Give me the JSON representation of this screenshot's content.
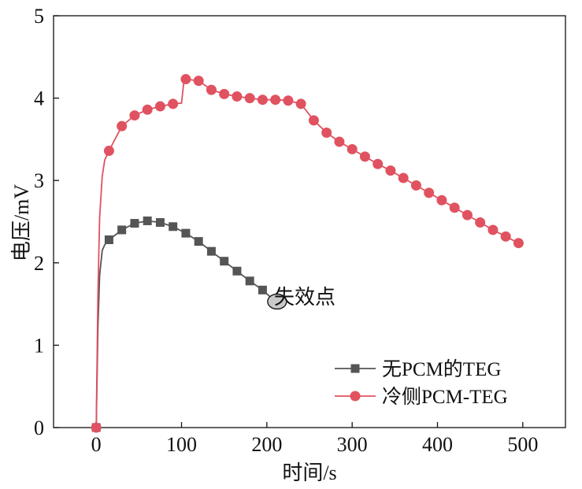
{
  "chart_data": {
    "type": "line",
    "xlabel": "时间/s",
    "ylabel": "电压/mV",
    "xlim": [
      -50,
      550
    ],
    "ylim": [
      0,
      5
    ],
    "xticks": [
      0,
      100,
      200,
      300,
      400,
      500
    ],
    "yticks": [
      0,
      1,
      2,
      3,
      4,
      5
    ],
    "grid": false,
    "legend": "bottom-right",
    "series": [
      {
        "name": "无PCM的TEG",
        "color": "#555555",
        "marker": "square",
        "markers": [
          [
            0,
            0
          ],
          [
            15,
            2.28
          ],
          [
            30,
            2.4
          ],
          [
            45,
            2.48
          ],
          [
            60,
            2.51
          ],
          [
            75,
            2.49
          ],
          [
            90,
            2.44
          ],
          [
            105,
            2.36
          ],
          [
            120,
            2.26
          ],
          [
            135,
            2.14
          ],
          [
            150,
            2.02
          ],
          [
            165,
            1.9
          ],
          [
            180,
            1.78
          ],
          [
            195,
            1.67
          ]
        ],
        "line": [
          [
            0,
            0
          ],
          [
            2,
            1.2
          ],
          [
            4,
            1.85
          ],
          [
            7,
            2.15
          ],
          [
            10,
            2.22
          ],
          [
            15,
            2.28
          ],
          [
            30,
            2.4
          ],
          [
            45,
            2.48
          ],
          [
            60,
            2.51
          ],
          [
            75,
            2.49
          ],
          [
            90,
            2.44
          ],
          [
            105,
            2.36
          ],
          [
            120,
            2.26
          ],
          [
            135,
            2.14
          ],
          [
            150,
            2.02
          ],
          [
            165,
            1.9
          ],
          [
            180,
            1.78
          ],
          [
            195,
            1.67
          ],
          [
            210,
            1.53
          ]
        ]
      },
      {
        "name": "冷侧PCM-TEG",
        "color": "#e05260",
        "marker": "circle",
        "markers": [
          [
            0,
            0
          ],
          [
            15,
            3.36
          ],
          [
            30,
            3.66
          ],
          [
            45,
            3.79
          ],
          [
            60,
            3.86
          ],
          [
            75,
            3.9
          ],
          [
            90,
            3.93
          ],
          [
            105,
            4.23
          ],
          [
            120,
            4.21
          ],
          [
            135,
            4.1
          ],
          [
            150,
            4.05
          ],
          [
            165,
            4.02
          ],
          [
            180,
            4.0
          ],
          [
            195,
            3.98
          ],
          [
            210,
            3.98
          ],
          [
            225,
            3.97
          ],
          [
            240,
            3.93
          ],
          [
            255,
            3.73
          ],
          [
            270,
            3.58
          ],
          [
            285,
            3.47
          ],
          [
            300,
            3.38
          ],
          [
            315,
            3.29
          ],
          [
            330,
            3.2
          ],
          [
            345,
            3.12
          ],
          [
            360,
            3.03
          ],
          [
            375,
            2.94
          ],
          [
            390,
            2.85
          ],
          [
            405,
            2.76
          ],
          [
            420,
            2.67
          ],
          [
            435,
            2.58
          ],
          [
            450,
            2.49
          ],
          [
            465,
            2.4
          ],
          [
            480,
            2.32
          ],
          [
            495,
            2.24
          ]
        ],
        "line": [
          [
            0,
            0
          ],
          [
            2,
            1.6
          ],
          [
            4,
            2.55
          ],
          [
            7,
            3.05
          ],
          [
            10,
            3.25
          ],
          [
            15,
            3.36
          ],
          [
            30,
            3.66
          ],
          [
            45,
            3.79
          ],
          [
            60,
            3.86
          ],
          [
            75,
            3.9
          ],
          [
            90,
            3.93
          ],
          [
            100,
            3.94
          ],
          [
            103,
            4.23
          ],
          [
            105,
            4.23
          ],
          [
            120,
            4.21
          ],
          [
            135,
            4.1
          ],
          [
            150,
            4.05
          ],
          [
            165,
            4.02
          ],
          [
            180,
            4.0
          ],
          [
            195,
            3.98
          ],
          [
            210,
            3.98
          ],
          [
            225,
            3.97
          ],
          [
            240,
            3.93
          ],
          [
            255,
            3.73
          ],
          [
            270,
            3.58
          ],
          [
            285,
            3.47
          ],
          [
            300,
            3.38
          ],
          [
            315,
            3.29
          ],
          [
            330,
            3.2
          ],
          [
            345,
            3.12
          ],
          [
            360,
            3.03
          ],
          [
            375,
            2.94
          ],
          [
            390,
            2.85
          ],
          [
            405,
            2.76
          ],
          [
            420,
            2.67
          ],
          [
            435,
            2.58
          ],
          [
            450,
            2.49
          ],
          [
            465,
            2.4
          ],
          [
            480,
            2.32
          ],
          [
            495,
            2.24
          ]
        ]
      }
    ],
    "annotation": {
      "text": "失效点",
      "x": 212,
      "y": 1.53
    }
  }
}
